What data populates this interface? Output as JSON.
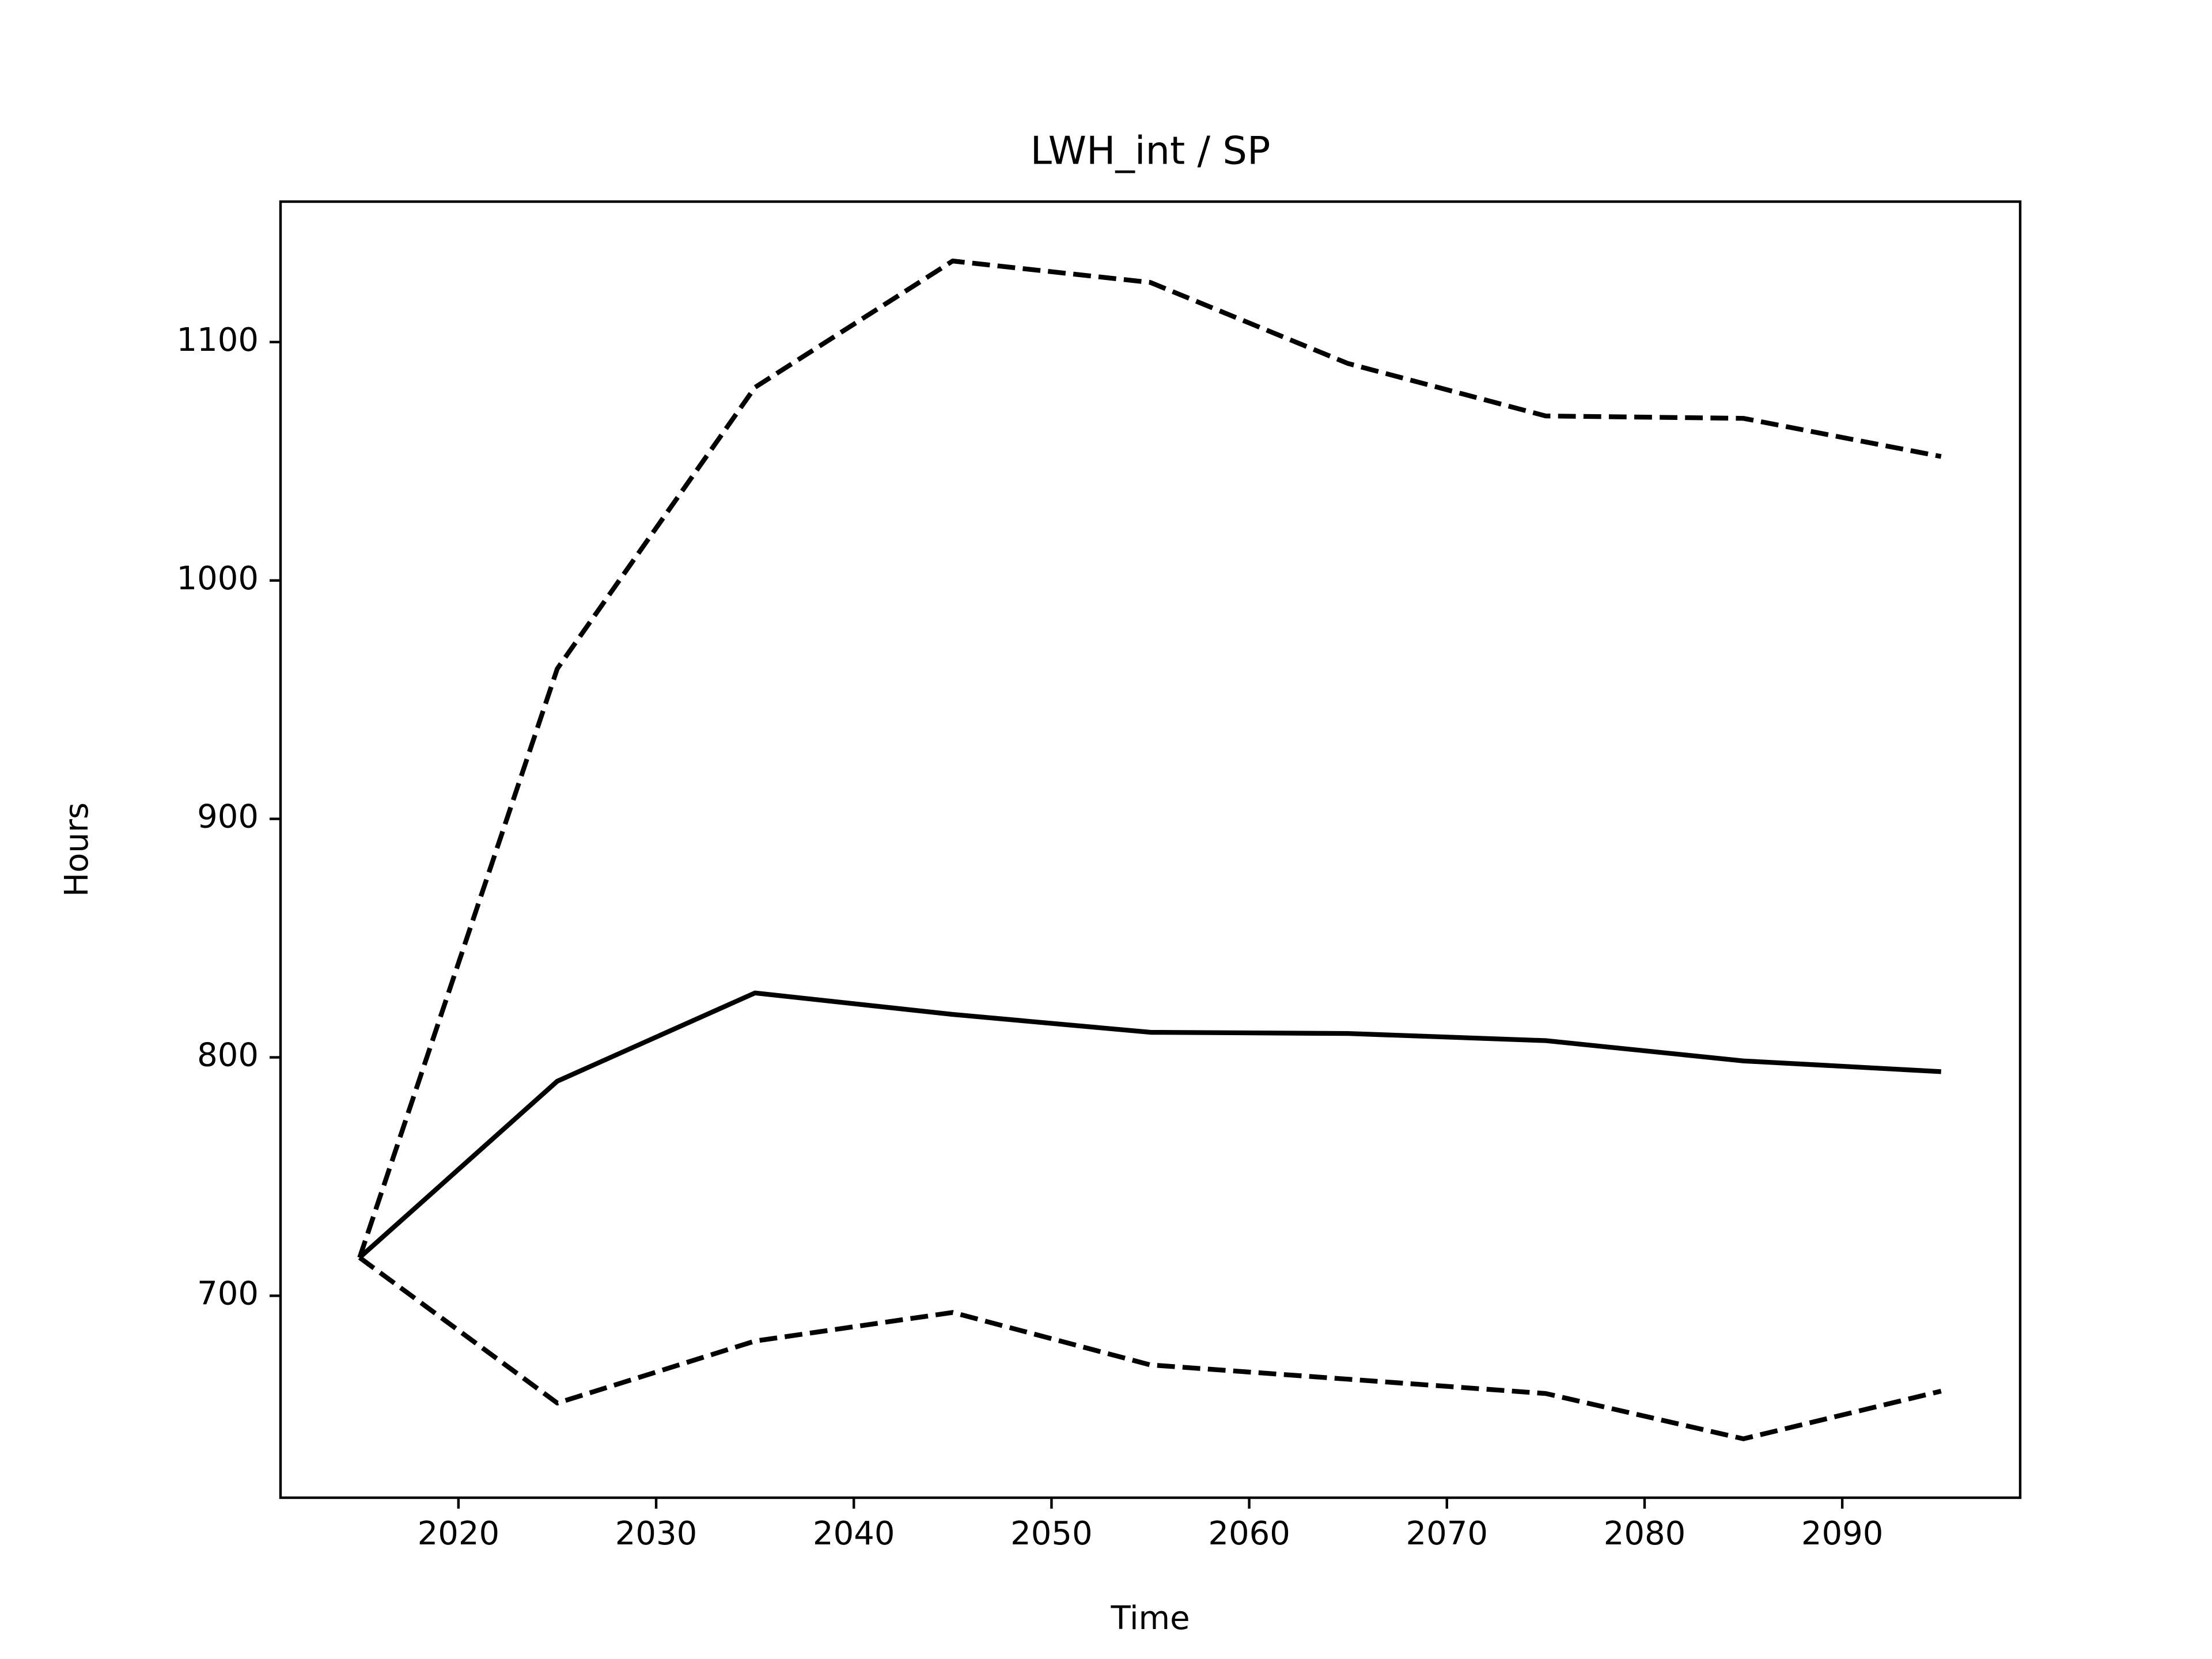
{
  "chart_data": {
    "type": "line",
    "title": "LWH_int / SP",
    "xlabel": "Time",
    "ylabel": "Hours",
    "x": [
      2015,
      2025,
      2035,
      2045,
      2055,
      2065,
      2075,
      2085,
      2095
    ],
    "series": [
      {
        "color": "#000000",
        "linestyle": "solid",
        "values": [
          716,
          790,
          827,
          818,
          810.5,
          810,
          807,
          798.5,
          794
        ]
      },
      {
        "color": "#000000",
        "linestyle": "dashed",
        "values": [
          716,
          963,
          1081,
          1134,
          1125,
          1091,
          1069,
          1068,
          1052
        ]
      },
      {
        "color": "#000000",
        "linestyle": "dashed",
        "values": [
          716,
          655,
          681,
          693,
          671,
          665,
          659,
          640,
          660
        ]
      }
    ],
    "xlim": [
      2011,
      2099
    ],
    "xticks": [
      2020,
      2030,
      2040,
      2050,
      2060,
      2070,
      2080,
      2090
    ],
    "ylim": [
      615.3,
      1158.9
    ],
    "yticks": [
      700,
      800,
      900,
      1000,
      1100
    ],
    "grid": false
  }
}
